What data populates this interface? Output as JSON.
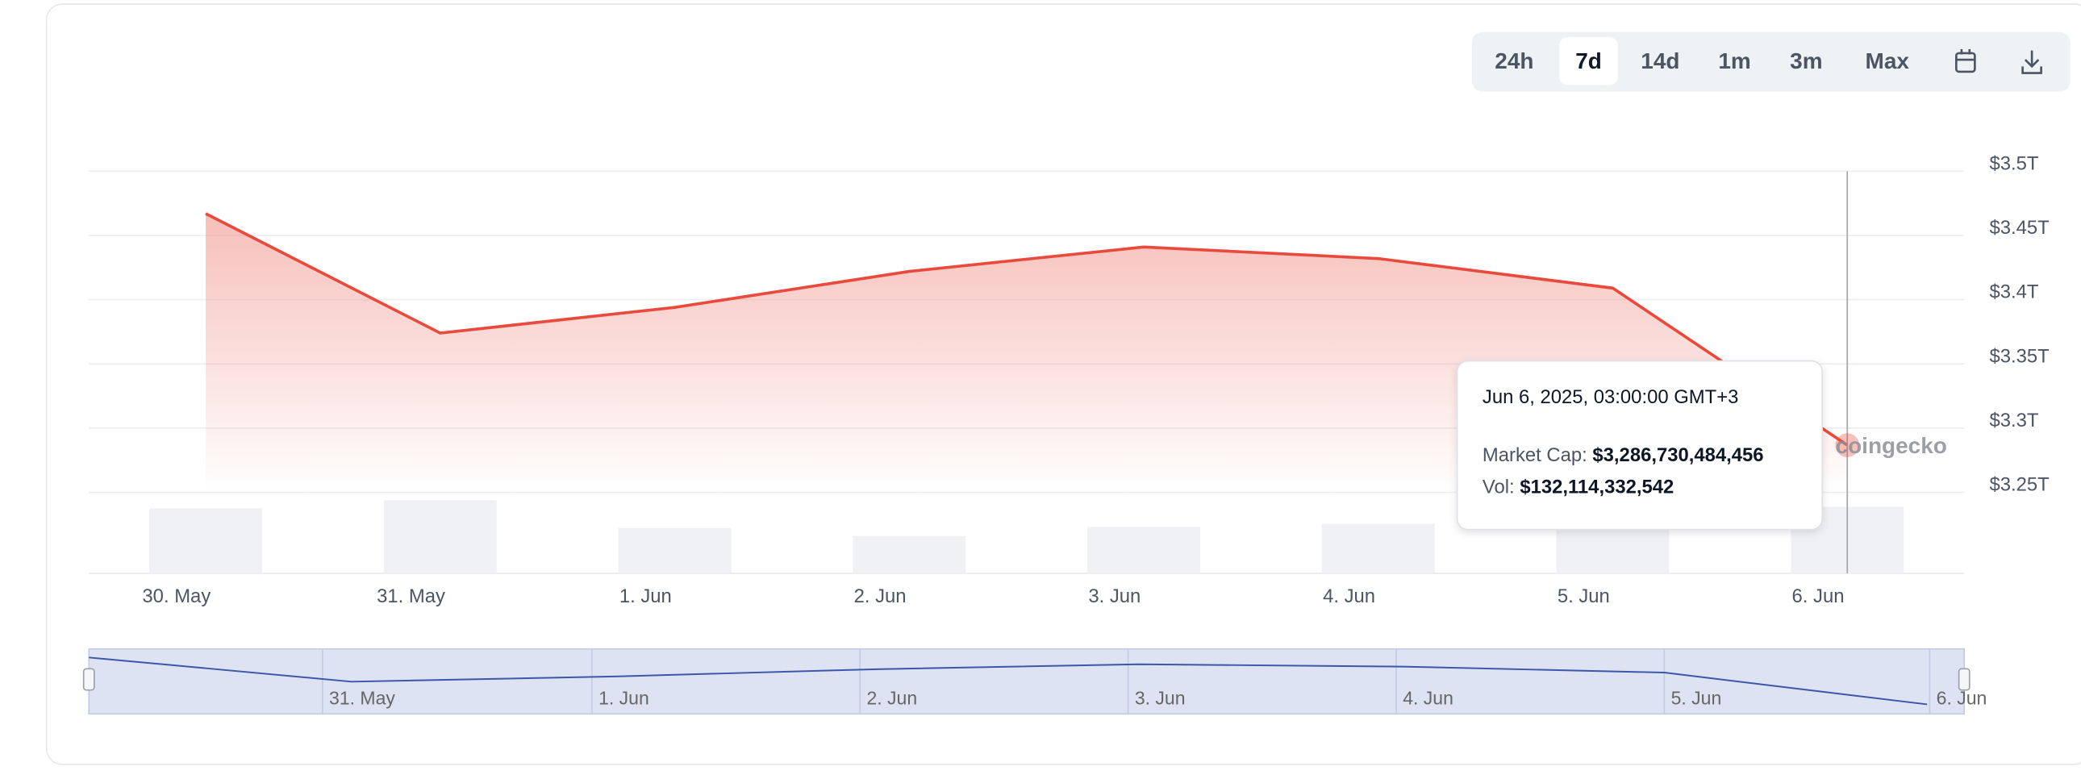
{
  "chart_data": {
    "type": "line",
    "range_buttons": [
      "24h",
      "7d",
      "14d",
      "1m",
      "3m",
      "Max"
    ],
    "active_range": "7d",
    "categories": [
      "30. May",
      "31. May",
      "1. Jun",
      "2. Jun",
      "3. Jun",
      "4. Jun",
      "5. Jun",
      "6. Jun"
    ],
    "series": [
      {
        "name": "Market Cap:",
        "color": "#ea4a3c",
        "values": [
          3467000000000,
          3374000000000,
          3394000000000,
          3422000000000,
          3441000000000,
          3432000000000,
          3409000000000,
          3286730484456
        ],
        "value_labels": [
          null,
          null,
          null,
          null,
          null,
          null,
          null,
          "$3,286,730,484,456"
        ]
      },
      {
        "name": "Vol:",
        "color": "#f0f1f5",
        "type": "bar",
        "values": [
          129000000000,
          145000000000,
          90000000000,
          74000000000,
          92000000000,
          98000000000,
          130000000000,
          132114332542
        ],
        "value_labels": [
          null,
          null,
          null,
          null,
          null,
          null,
          null,
          "$132,114,332,542"
        ]
      }
    ],
    "ylim": [
      3250000000000,
      3500000000000
    ],
    "yticks": [
      {
        "value": 3250000000000,
        "label": "$3.25T"
      },
      {
        "value": 3300000000000,
        "label": "$3.3T"
      },
      {
        "value": 3350000000000,
        "label": "$3.35T"
      },
      {
        "value": 3400000000000,
        "label": "$3.4T"
      },
      {
        "value": 3450000000000,
        "label": "$3.45T"
      },
      {
        "value": 3500000000000,
        "label": "$3.5T"
      }
    ],
    "grid": true,
    "tooltip_title": "Jun 6, 2025, 03:00:00 GMT+3",
    "watermark": "coingecko"
  }
}
